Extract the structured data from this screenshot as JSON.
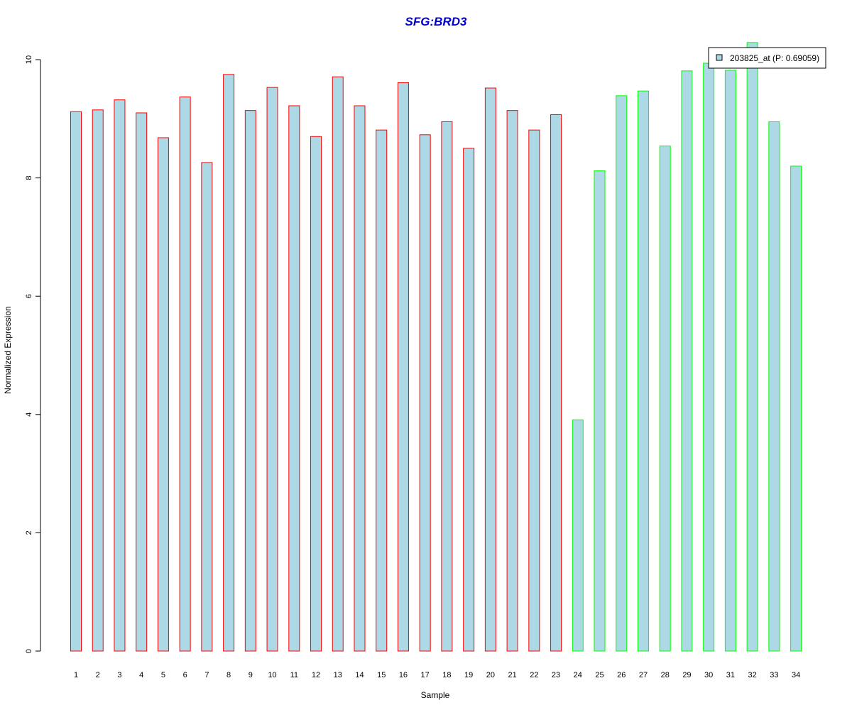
{
  "chart_data": {
    "type": "bar",
    "title": "SFG:BRD3",
    "xlabel": "Sample",
    "ylabel": "Normalized Expression",
    "ylim": [
      0,
      10
    ],
    "yticks": [
      "0",
      "2",
      "4",
      "6",
      "8",
      "10"
    ],
    "categories": [
      "1",
      "2",
      "3",
      "4",
      "5",
      "6",
      "7",
      "8",
      "9",
      "10",
      "11",
      "12",
      "13",
      "14",
      "15",
      "16",
      "17",
      "18",
      "19",
      "20",
      "21",
      "22",
      "23",
      "24",
      "25",
      "26",
      "27",
      "28",
      "29",
      "30",
      "31",
      "32",
      "33",
      "34"
    ],
    "series": [
      {
        "name": "203825_at (P: 0.69059)",
        "values": [
          9.12,
          9.15,
          9.32,
          9.1,
          8.68,
          9.37,
          8.26,
          9.75,
          9.14,
          9.53,
          9.22,
          8.7,
          9.71,
          9.22,
          8.81,
          9.61,
          8.73,
          8.95,
          8.5,
          9.52,
          9.14,
          8.81,
          9.07,
          3.91,
          8.12,
          9.39,
          9.47,
          8.54,
          9.81,
          9.94,
          9.82,
          10.29,
          8.95,
          8.2
        ],
        "group": [
          1,
          1,
          1,
          1,
          1,
          1,
          1,
          1,
          1,
          1,
          1,
          1,
          1,
          1,
          1,
          1,
          1,
          1,
          1,
          1,
          1,
          1,
          1,
          2,
          2,
          2,
          2,
          2,
          2,
          2,
          2,
          2,
          2,
          2
        ]
      }
    ],
    "legend_position": "top-right",
    "grid": false,
    "colors": {
      "title": "#0000cc",
      "bar_fill": "#add8e6",
      "group1_border": "#ff0000",
      "group2_border": "#00ff00",
      "axis": "#000000"
    }
  }
}
